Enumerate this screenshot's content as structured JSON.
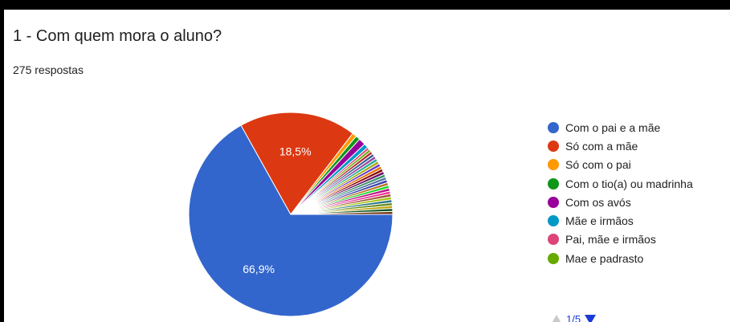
{
  "question": {
    "title": "1 - Com quem mora o aluno?",
    "response_count": "275 respostas"
  },
  "chart_data": {
    "type": "pie",
    "title": "1 - Com quem mora o aluno?",
    "slices": [
      {
        "label": "Com o pai e a mãe",
        "value": 66.9,
        "color": "#3366cc",
        "data_label": "66,9%"
      },
      {
        "label": "Só com a mãe",
        "value": 18.5,
        "color": "#dc3912",
        "data_label": "18,5%"
      },
      {
        "label": "Só com o pai",
        "value": 0.7,
        "color": "#ff9900"
      },
      {
        "label": "Com o tio(a) ou madrinha",
        "value": 0.7,
        "color": "#109618"
      },
      {
        "label": "Com os avós",
        "value": 1.1,
        "color": "#990099"
      },
      {
        "label": "Mãe e irmãos",
        "value": 0.7,
        "color": "#0099c6"
      },
      {
        "label": "Pai, mãe e irmãos",
        "value": 0.4,
        "color": "#dd4477"
      },
      {
        "label": "Mae e padrasto",
        "value": 0.4,
        "color": "#66aa00"
      }
    ],
    "other_slices_colors": [
      "#b82e2e",
      "#316395",
      "#994499",
      "#22aa99",
      "#aaaa11",
      "#6633cc",
      "#e67300",
      "#8b0707",
      "#651067",
      "#329262",
      "#5574a6",
      "#3b3eac",
      "#b77322",
      "#16d620",
      "#b91383",
      "#f4359e",
      "#9c5935",
      "#a9c413",
      "#2a778d",
      "#668d1c",
      "#bea413",
      "#0c5922",
      "#743411"
    ],
    "legend_position": "right"
  },
  "pager": {
    "label": "1/5"
  }
}
